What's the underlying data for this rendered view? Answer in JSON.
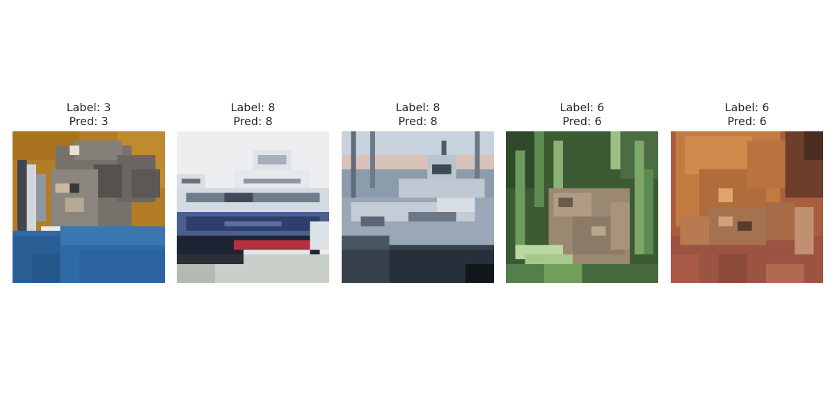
{
  "figure": {
    "panels": [
      {
        "label_text": "Label: 3",
        "pred_text": "Pred: 3",
        "image_subject": "cat"
      },
      {
        "label_text": "Label: 8",
        "pred_text": "Pred: 8",
        "image_subject": "ship"
      },
      {
        "label_text": "Label: 8",
        "pred_text": "Pred: 8",
        "image_subject": "ship"
      },
      {
        "label_text": "Label: 6",
        "pred_text": "Pred: 6",
        "image_subject": "frog"
      },
      {
        "label_text": "Label: 6",
        "pred_text": "Pred: 6",
        "image_subject": "frog"
      }
    ]
  }
}
